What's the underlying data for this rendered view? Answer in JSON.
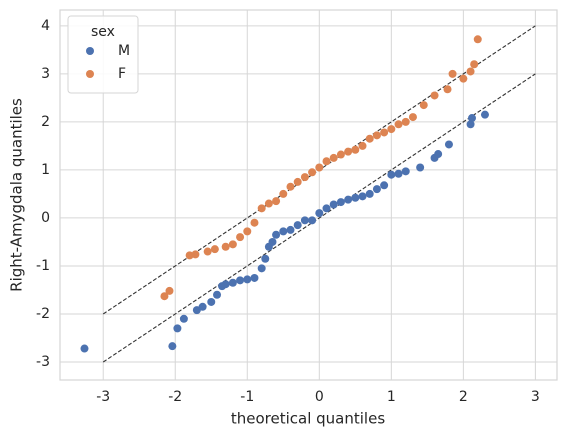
{
  "chart_data": {
    "type": "scatter",
    "x_label": "theoretical quantiles",
    "y_label": "Right-Amygdala quantiles",
    "xlim": [
      -3.6,
      3.3
    ],
    "ylim": [
      -3.375,
      4.33
    ],
    "xticks": [
      -3,
      -2,
      -1,
      0,
      1,
      2,
      3
    ],
    "yticks": [
      -3,
      -2,
      -1,
      0,
      1,
      2,
      3,
      4
    ],
    "grid": true,
    "legend_title": "sex",
    "legend_position": "upper-left",
    "series": [
      {
        "name": "M",
        "color": "#4c72b0",
        "x": [
          -3.26,
          -2.04,
          -1.97,
          -1.88,
          -1.7,
          -1.62,
          -1.5,
          -1.42,
          -1.35,
          -1.3,
          -1.2,
          -1.1,
          -1.0,
          -0.9,
          -0.8,
          -0.75,
          -0.7,
          -0.65,
          -0.6,
          -0.5,
          -0.4,
          -0.3,
          -0.2,
          -0.1,
          0,
          0.1,
          0.2,
          0.3,
          0.4,
          0.5,
          0.6,
          0.7,
          0.8,
          0.9,
          1.0,
          1.1,
          1.2,
          1.4,
          1.6,
          1.65,
          1.8,
          2.1,
          2.12,
          2.3
        ],
        "values": [
          -2.72,
          -2.67,
          -2.3,
          -2.1,
          -1.92,
          -1.85,
          -1.75,
          -1.6,
          -1.42,
          -1.38,
          -1.35,
          -1.3,
          -1.28,
          -1.25,
          -1.05,
          -0.85,
          -0.6,
          -0.5,
          -0.35,
          -0.28,
          -0.25,
          -0.15,
          -0.05,
          -0.05,
          0.1,
          0.2,
          0.28,
          0.33,
          0.38,
          0.42,
          0.45,
          0.5,
          0.6,
          0.68,
          0.9,
          0.92,
          0.97,
          1.05,
          1.25,
          1.33,
          1.53,
          1.95,
          2.08,
          2.15
        ]
      },
      {
        "name": "F",
        "color": "#dd8452",
        "x": [
          -2.15,
          -2.08,
          -1.8,
          -1.72,
          -1.55,
          -1.45,
          -1.3,
          -1.2,
          -1.1,
          -1.0,
          -0.9,
          -0.8,
          -0.7,
          -0.6,
          -0.5,
          -0.4,
          -0.3,
          -0.2,
          -0.1,
          0,
          0.1,
          0.2,
          0.3,
          0.4,
          0.5,
          0.6,
          0.7,
          0.8,
          0.9,
          1.0,
          1.1,
          1.2,
          1.3,
          1.45,
          1.6,
          1.78,
          1.85,
          2.0,
          2.1,
          2.15,
          2.2
        ],
        "values": [
          -1.63,
          -1.52,
          -0.78,
          -0.76,
          -0.7,
          -0.65,
          -0.6,
          -0.55,
          -0.4,
          -0.28,
          -0.1,
          0.2,
          0.3,
          0.35,
          0.5,
          0.65,
          0.75,
          0.85,
          0.95,
          1.05,
          1.18,
          1.25,
          1.32,
          1.38,
          1.42,
          1.5,
          1.65,
          1.72,
          1.78,
          1.85,
          1.95,
          2.0,
          2.1,
          2.35,
          2.55,
          2.68,
          3.0,
          2.9,
          3.05,
          3.2,
          3.72
        ]
      }
    ],
    "reference_lines": [
      {
        "color": "#333333",
        "x": [
          -3,
          3
        ],
        "values": [
          -2,
          4
        ]
      },
      {
        "color": "#333333",
        "x": [
          -3,
          3
        ],
        "values": [
          -3,
          3
        ]
      }
    ]
  }
}
